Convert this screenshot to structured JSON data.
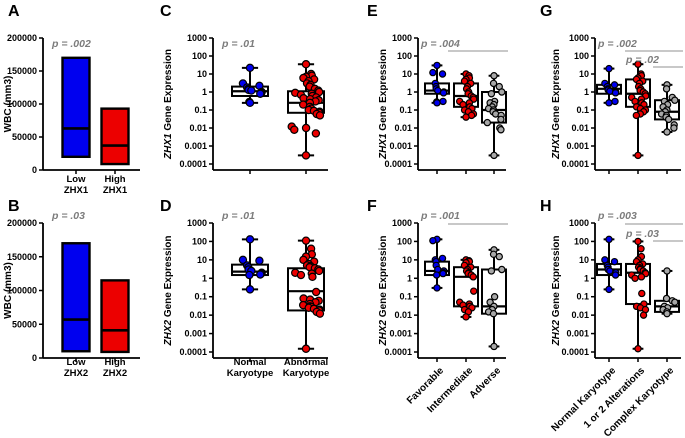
{
  "colors": {
    "blue": "#0000EF",
    "red": "#EC0000",
    "gray": "#A8A8A8",
    "stroke": "#000000",
    "box_fill": "#FFFFFF",
    "p_text": "#7C7C7C",
    "p_line": "#B5B5B5"
  },
  "log_ticks": [
    "1000",
    "100",
    "10",
    "1",
    "0.1",
    "0.01",
    "0.001",
    "0.0001"
  ],
  "chart_data": [
    {
      "letter": "A",
      "type": "bar",
      "col": 0,
      "row": 0,
      "ylabel": "WBC (mm3)",
      "ylim": [
        0,
        200000
      ],
      "yticks": [
        "0",
        "50000",
        "100000",
        "150000",
        "200000"
      ],
      "p_values": [
        {
          "text": "p = .002"
        }
      ],
      "categories": [
        [
          "Low",
          "ZHX1"
        ],
        [
          "High",
          "ZHX1"
        ]
      ],
      "bars": [
        {
          "color": "blue",
          "low": 20000,
          "high": 170000,
          "median": 63000
        },
        {
          "color": "red",
          "low": 9000,
          "high": 93000,
          "median": 37000
        }
      ]
    },
    {
      "letter": "B",
      "type": "bar",
      "col": 0,
      "row": 1,
      "ylabel": "WBC (mm3)",
      "ylim": [
        0,
        200000
      ],
      "yticks": [
        "0",
        "50000",
        "100000",
        "150000",
        "200000"
      ],
      "p_values": [
        {
          "text": "p = .03"
        }
      ],
      "categories": [
        [
          "Low",
          "ZHX2"
        ],
        [
          "High",
          "ZHX2"
        ]
      ],
      "bars": [
        {
          "color": "blue",
          "low": 10000,
          "high": 170000,
          "median": 57000
        },
        {
          "color": "red",
          "low": 9000,
          "high": 115000,
          "median": 41000
        }
      ]
    },
    {
      "letter": "C",
      "type": "box",
      "col": 1,
      "row": 0,
      "ylabel_gene": "ZHX1",
      "ylabel_rest": " Gene Expression",
      "p_values": [
        {
          "text": "p = .01"
        }
      ],
      "categories": [],
      "groups": [
        {
          "color": "blue",
          "whisker_low": 0.25,
          "q1": 0.6,
          "median": 1.1,
          "q3": 2.0,
          "whisker_high": 22,
          "points": [
            22,
            3,
            2.2,
            1.8,
            1.5,
            1.3,
            1.2,
            1,
            0.9,
            0.8,
            0.28,
            0.25
          ]
        },
        {
          "color": "red",
          "whisker_low": 0.0003,
          "q1": 0.07,
          "median": 0.25,
          "q3": 1.1,
          "whisker_high": 35,
          "points": [
            35,
            10,
            8,
            7,
            6,
            5,
            4,
            3,
            2.5,
            2,
            1.5,
            1.2,
            1,
            0.9,
            0.8,
            0.7,
            0.6,
            0.5,
            0.45,
            0.4,
            0.35,
            0.3,
            0.25,
            0.2,
            0.15,
            0.12,
            0.1,
            0.09,
            0.08,
            0.07,
            0.06,
            0.05,
            0.012,
            0.01,
            0.008,
            0.005,
            0.0003
          ]
        }
      ]
    },
    {
      "letter": "D",
      "type": "box",
      "col": 1,
      "row": 1,
      "ylabel_gene": "ZHX2",
      "ylabel_rest": " Gene Expression",
      "p_values": [
        {
          "text": "p = .01"
        }
      ],
      "categories": [
        [
          "Normal",
          "Karyotype"
        ],
        [
          "Abnormal",
          "Karyotype"
        ]
      ],
      "label_rotation": 0,
      "groups": [
        {
          "color": "blue",
          "whisker_low": 0.25,
          "q1": 1.5,
          "median": 2.3,
          "q3": 5.5,
          "whisker_high": 130,
          "points": [
            130,
            10,
            9,
            5,
            4,
            3,
            2.5,
            2,
            1.8,
            1.6,
            1.5,
            0.25
          ]
        },
        {
          "color": "red",
          "whisker_low": 0.00015,
          "q1": 0.018,
          "median": 0.2,
          "q3": 3.5,
          "whisker_high": 110,
          "points": [
            110,
            40,
            20,
            15,
            10,
            8,
            6,
            5,
            4.5,
            4,
            3.5,
            3,
            2.5,
            2,
            1.8,
            1.5,
            1.2,
            0.18,
            0.08,
            0.07,
            0.06,
            0.05,
            0.04,
            0.035,
            0.03,
            0.028,
            0.025,
            0.022,
            0.02,
            0.018,
            0.015,
            0.012,
            0.00015
          ]
        }
      ]
    },
    {
      "letter": "E",
      "type": "box",
      "col": 2,
      "row": 0,
      "ylabel_gene": "ZHX1",
      "ylabel_rest": " Gene Expression",
      "p_values": [
        {
          "text": "p = .004",
          "line": [
            0,
            2
          ]
        }
      ],
      "categories": [],
      "groups": [
        {
          "color": "blue",
          "whisker_low": 0.25,
          "q1": 0.8,
          "median": 1.2,
          "q3": 3,
          "whisker_high": 30,
          "points": [
            30,
            12,
            10,
            3,
            2,
            1.5,
            1.2,
            1,
            0.9,
            0.3,
            0.28,
            0.25
          ]
        },
        {
          "color": "red",
          "whisker_low": 0.04,
          "q1": 0.15,
          "median": 0.6,
          "q3": 3,
          "whisker_high": 10,
          "points": [
            10,
            8,
            6,
            5,
            4,
            3,
            2,
            1.5,
            1,
            0.8,
            0.6,
            0.5,
            0.4,
            0.3,
            0.25,
            0.2,
            0.15,
            0.12,
            0.1,
            0.08,
            0.06,
            0.05,
            0.04
          ]
        },
        {
          "color": "gray",
          "whisker_low": 0.0003,
          "q1": 0.02,
          "median": 0.1,
          "q3": 1,
          "whisker_high": 8,
          "points": [
            8,
            3,
            2,
            1,
            0.8,
            0.3,
            0.25,
            0.2,
            0.15,
            0.12,
            0.1,
            0.08,
            0.06,
            0.05,
            0.03,
            0.02,
            0.01,
            0.008,
            0.0003
          ]
        }
      ]
    },
    {
      "letter": "F",
      "type": "box",
      "col": 2,
      "row": 1,
      "ylabel_gene": "ZHX2",
      "ylabel_rest": " Gene Expression",
      "p_values": [
        {
          "text": "p = .001",
          "line": [
            0,
            2
          ]
        }
      ],
      "categories": [
        "Favorable",
        "Intermediate",
        "Adverse"
      ],
      "label_rotation": 45,
      "groups": [
        {
          "color": "blue",
          "whisker_low": 0.3,
          "q1": 1.5,
          "median": 2.5,
          "q3": 8,
          "whisker_high": 130,
          "points": [
            130,
            110,
            12,
            10,
            8,
            5,
            3,
            2.5,
            2,
            1.8,
            1.5,
            0.3
          ]
        },
        {
          "color": "red",
          "whisker_low": 0.008,
          "q1": 0.03,
          "median": 1.2,
          "q3": 4,
          "whisker_high": 10,
          "points": [
            10,
            9,
            8,
            7,
            5,
            4,
            3,
            2.5,
            2,
            1.8,
            1.5,
            1.2,
            0.2,
            0.05,
            0.04,
            0.035,
            0.03,
            0.025,
            0.02,
            0.015,
            0.008
          ]
        },
        {
          "color": "gray",
          "whisker_low": 0.0002,
          "q1": 0.012,
          "median": 0.03,
          "q3": 3,
          "whisker_high": 35,
          "points": [
            35,
            20,
            15,
            3,
            2.5,
            0.1,
            0.05,
            0.03,
            0.02,
            0.015,
            0.012,
            0.0002
          ]
        }
      ]
    },
    {
      "letter": "G",
      "type": "box",
      "col": 3,
      "row": 0,
      "ylabel_gene": "ZHX1",
      "ylabel_rest": " Gene Expression",
      "p_values": [
        {
          "text": "p = .002",
          "line": [
            0,
            2
          ]
        },
        {
          "text": "p = .02",
          "line": [
            1,
            2
          ]
        }
      ],
      "categories": [],
      "groups": [
        {
          "color": "blue",
          "whisker_low": 0.25,
          "q1": 0.8,
          "median": 1.5,
          "q3": 2.5,
          "whisker_high": 20,
          "points": [
            20,
            3,
            2.5,
            2,
            1.5,
            1.3,
            1.1,
            1,
            0.9,
            0.3,
            0.25
          ]
        },
        {
          "color": "red",
          "whisker_low": 0.0003,
          "q1": 0.15,
          "median": 0.8,
          "q3": 5,
          "whisker_high": 35,
          "points": [
            35,
            10,
            8,
            6,
            5,
            4,
            3,
            2,
            1.5,
            1.2,
            1,
            0.8,
            0.6,
            0.5,
            0.4,
            0.3,
            0.25,
            0.2,
            0.15,
            0.12,
            0.1,
            0.08,
            0.06,
            0.05,
            0.0003
          ]
        },
        {
          "color": "gray",
          "whisker_low": 0.006,
          "q1": 0.03,
          "median": 0.08,
          "q3": 0.35,
          "whisker_high": 2.5,
          "points": [
            2.5,
            1.5,
            0.5,
            0.35,
            0.3,
            0.2,
            0.15,
            0.1,
            0.08,
            0.06,
            0.05,
            0.04,
            0.03,
            0.015,
            0.01,
            0.006
          ]
        }
      ]
    },
    {
      "letter": "H",
      "type": "box",
      "col": 3,
      "row": 1,
      "ylabel_gene": "ZHX2",
      "ylabel_rest": " Gene Expression",
      "p_values": [
        {
          "text": "p = .003",
          "line": [
            0,
            2
          ]
        },
        {
          "text": "p = .03",
          "line": [
            1,
            2
          ]
        }
      ],
      "categories": [
        "Normal Karyotype",
        "1 or 2 Alterations",
        "Complex Karyotype"
      ],
      "label_rotation": 45,
      "groups": [
        {
          "color": "blue",
          "whisker_low": 0.25,
          "q1": 1.5,
          "median": 3,
          "q3": 6,
          "whisker_high": 130,
          "points": [
            130,
            10,
            8,
            5,
            4,
            3,
            2.5,
            2,
            1.5,
            0.25
          ]
        },
        {
          "color": "red",
          "whisker_low": 0.00015,
          "q1": 0.04,
          "median": 2,
          "q3": 6,
          "whisker_high": 100,
          "points": [
            100,
            40,
            15,
            10,
            8,
            6,
            5,
            4,
            3.5,
            3,
            2.5,
            2,
            1.8,
            1.5,
            1.2,
            1,
            0.15,
            0.04,
            0.03,
            0.025,
            0.02,
            0.01,
            0.00015
          ]
        },
        {
          "color": "gray",
          "whisker_low": 0.012,
          "q1": 0.015,
          "median": 0.03,
          "q3": 0.06,
          "whisker_high": 2.5,
          "points": [
            2.5,
            0.08,
            0.06,
            0.05,
            0.03,
            0.025,
            0.02,
            0.015,
            0.012
          ]
        }
      ]
    }
  ]
}
